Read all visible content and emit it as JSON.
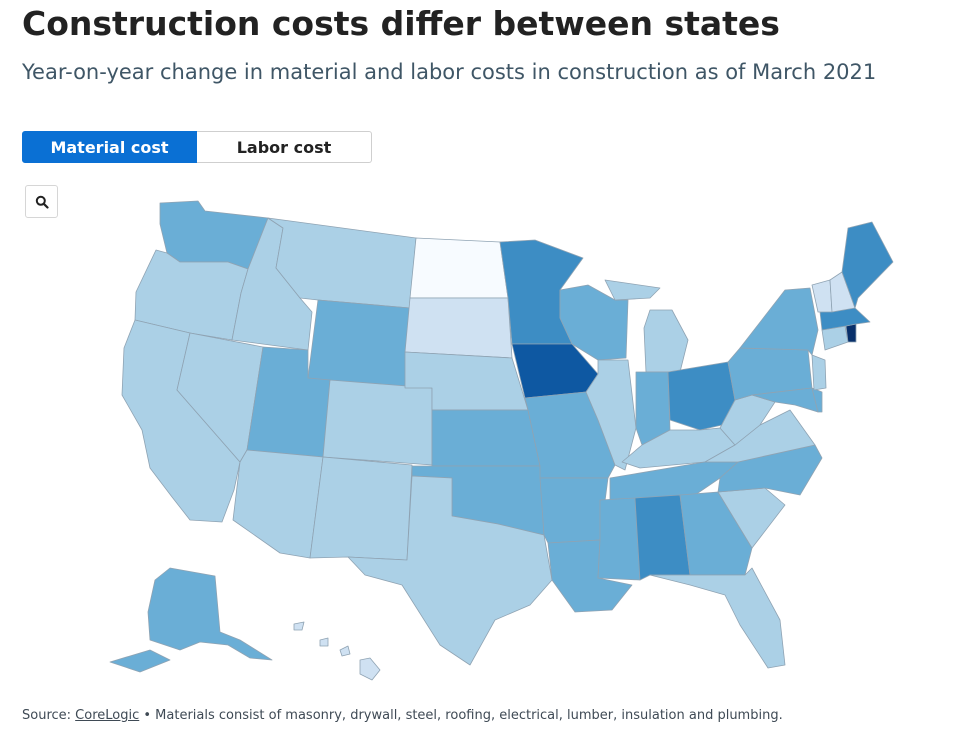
{
  "title": "Construction costs differ between states",
  "subtitle": "Year-on-year change in material and labor costs in construction as of March 2021",
  "tabs": [
    {
      "label": "Material cost",
      "active": true
    },
    {
      "label": "Labor cost",
      "active": false
    }
  ],
  "zoom_button": {
    "icon": "search-icon"
  },
  "source": {
    "prefix": "Source: ",
    "link": "CoreLogic",
    "suffix": " • Materials consist of masonry, drywall, steel, roofing, electrical, lumber, insulation and plumbing."
  },
  "color_scale": {
    "0": "#f7fbff",
    "1": "#cfe1f2",
    "2": "#abd0e6",
    "3": "#6aaed6",
    "4": "#3d8dc4",
    "5": "#0e58a2",
    "6": "#08306b"
  },
  "states": [
    {
      "id": "WA",
      "level": 3
    },
    {
      "id": "OR",
      "level": 2
    },
    {
      "id": "CA",
      "level": 2
    },
    {
      "id": "ID",
      "level": 2
    },
    {
      "id": "NV",
      "level": 2
    },
    {
      "id": "MT",
      "level": 2
    },
    {
      "id": "WY",
      "level": 3
    },
    {
      "id": "UT",
      "level": 3
    },
    {
      "id": "AZ",
      "level": 2
    },
    {
      "id": "CO",
      "level": 2
    },
    {
      "id": "NM",
      "level": 2
    },
    {
      "id": "ND",
      "level": 0
    },
    {
      "id": "SD",
      "level": 1
    },
    {
      "id": "NE",
      "level": 2
    },
    {
      "id": "KS",
      "level": 3
    },
    {
      "id": "OK",
      "level": 3
    },
    {
      "id": "TX",
      "level": 2
    },
    {
      "id": "MN",
      "level": 4
    },
    {
      "id": "IA",
      "level": 5
    },
    {
      "id": "MO",
      "level": 3
    },
    {
      "id": "AR",
      "level": 3
    },
    {
      "id": "LA",
      "level": 3
    },
    {
      "id": "WI",
      "level": 3
    },
    {
      "id": "IL",
      "level": 2
    },
    {
      "id": "MI",
      "level": 2
    },
    {
      "id": "IN",
      "level": 3
    },
    {
      "id": "OH",
      "level": 4
    },
    {
      "id": "KY",
      "level": 2
    },
    {
      "id": "TN",
      "level": 3
    },
    {
      "id": "MS",
      "level": 3
    },
    {
      "id": "AL",
      "level": 4
    },
    {
      "id": "GA",
      "level": 3
    },
    {
      "id": "FL",
      "level": 2
    },
    {
      "id": "SC",
      "level": 2
    },
    {
      "id": "NC",
      "level": 3
    },
    {
      "id": "VA",
      "level": 2
    },
    {
      "id": "WV",
      "level": 2
    },
    {
      "id": "PA",
      "level": 3
    },
    {
      "id": "NY",
      "level": 3
    },
    {
      "id": "MD",
      "level": 3
    },
    {
      "id": "DE",
      "level": 3
    },
    {
      "id": "NJ",
      "level": 2
    },
    {
      "id": "CT",
      "level": 2
    },
    {
      "id": "RI",
      "level": 6
    },
    {
      "id": "MA",
      "level": 4
    },
    {
      "id": "VT",
      "level": 1
    },
    {
      "id": "NH",
      "level": 1
    },
    {
      "id": "ME",
      "level": 4
    },
    {
      "id": "AK",
      "level": 3
    },
    {
      "id": "HI",
      "level": 1
    }
  ]
}
